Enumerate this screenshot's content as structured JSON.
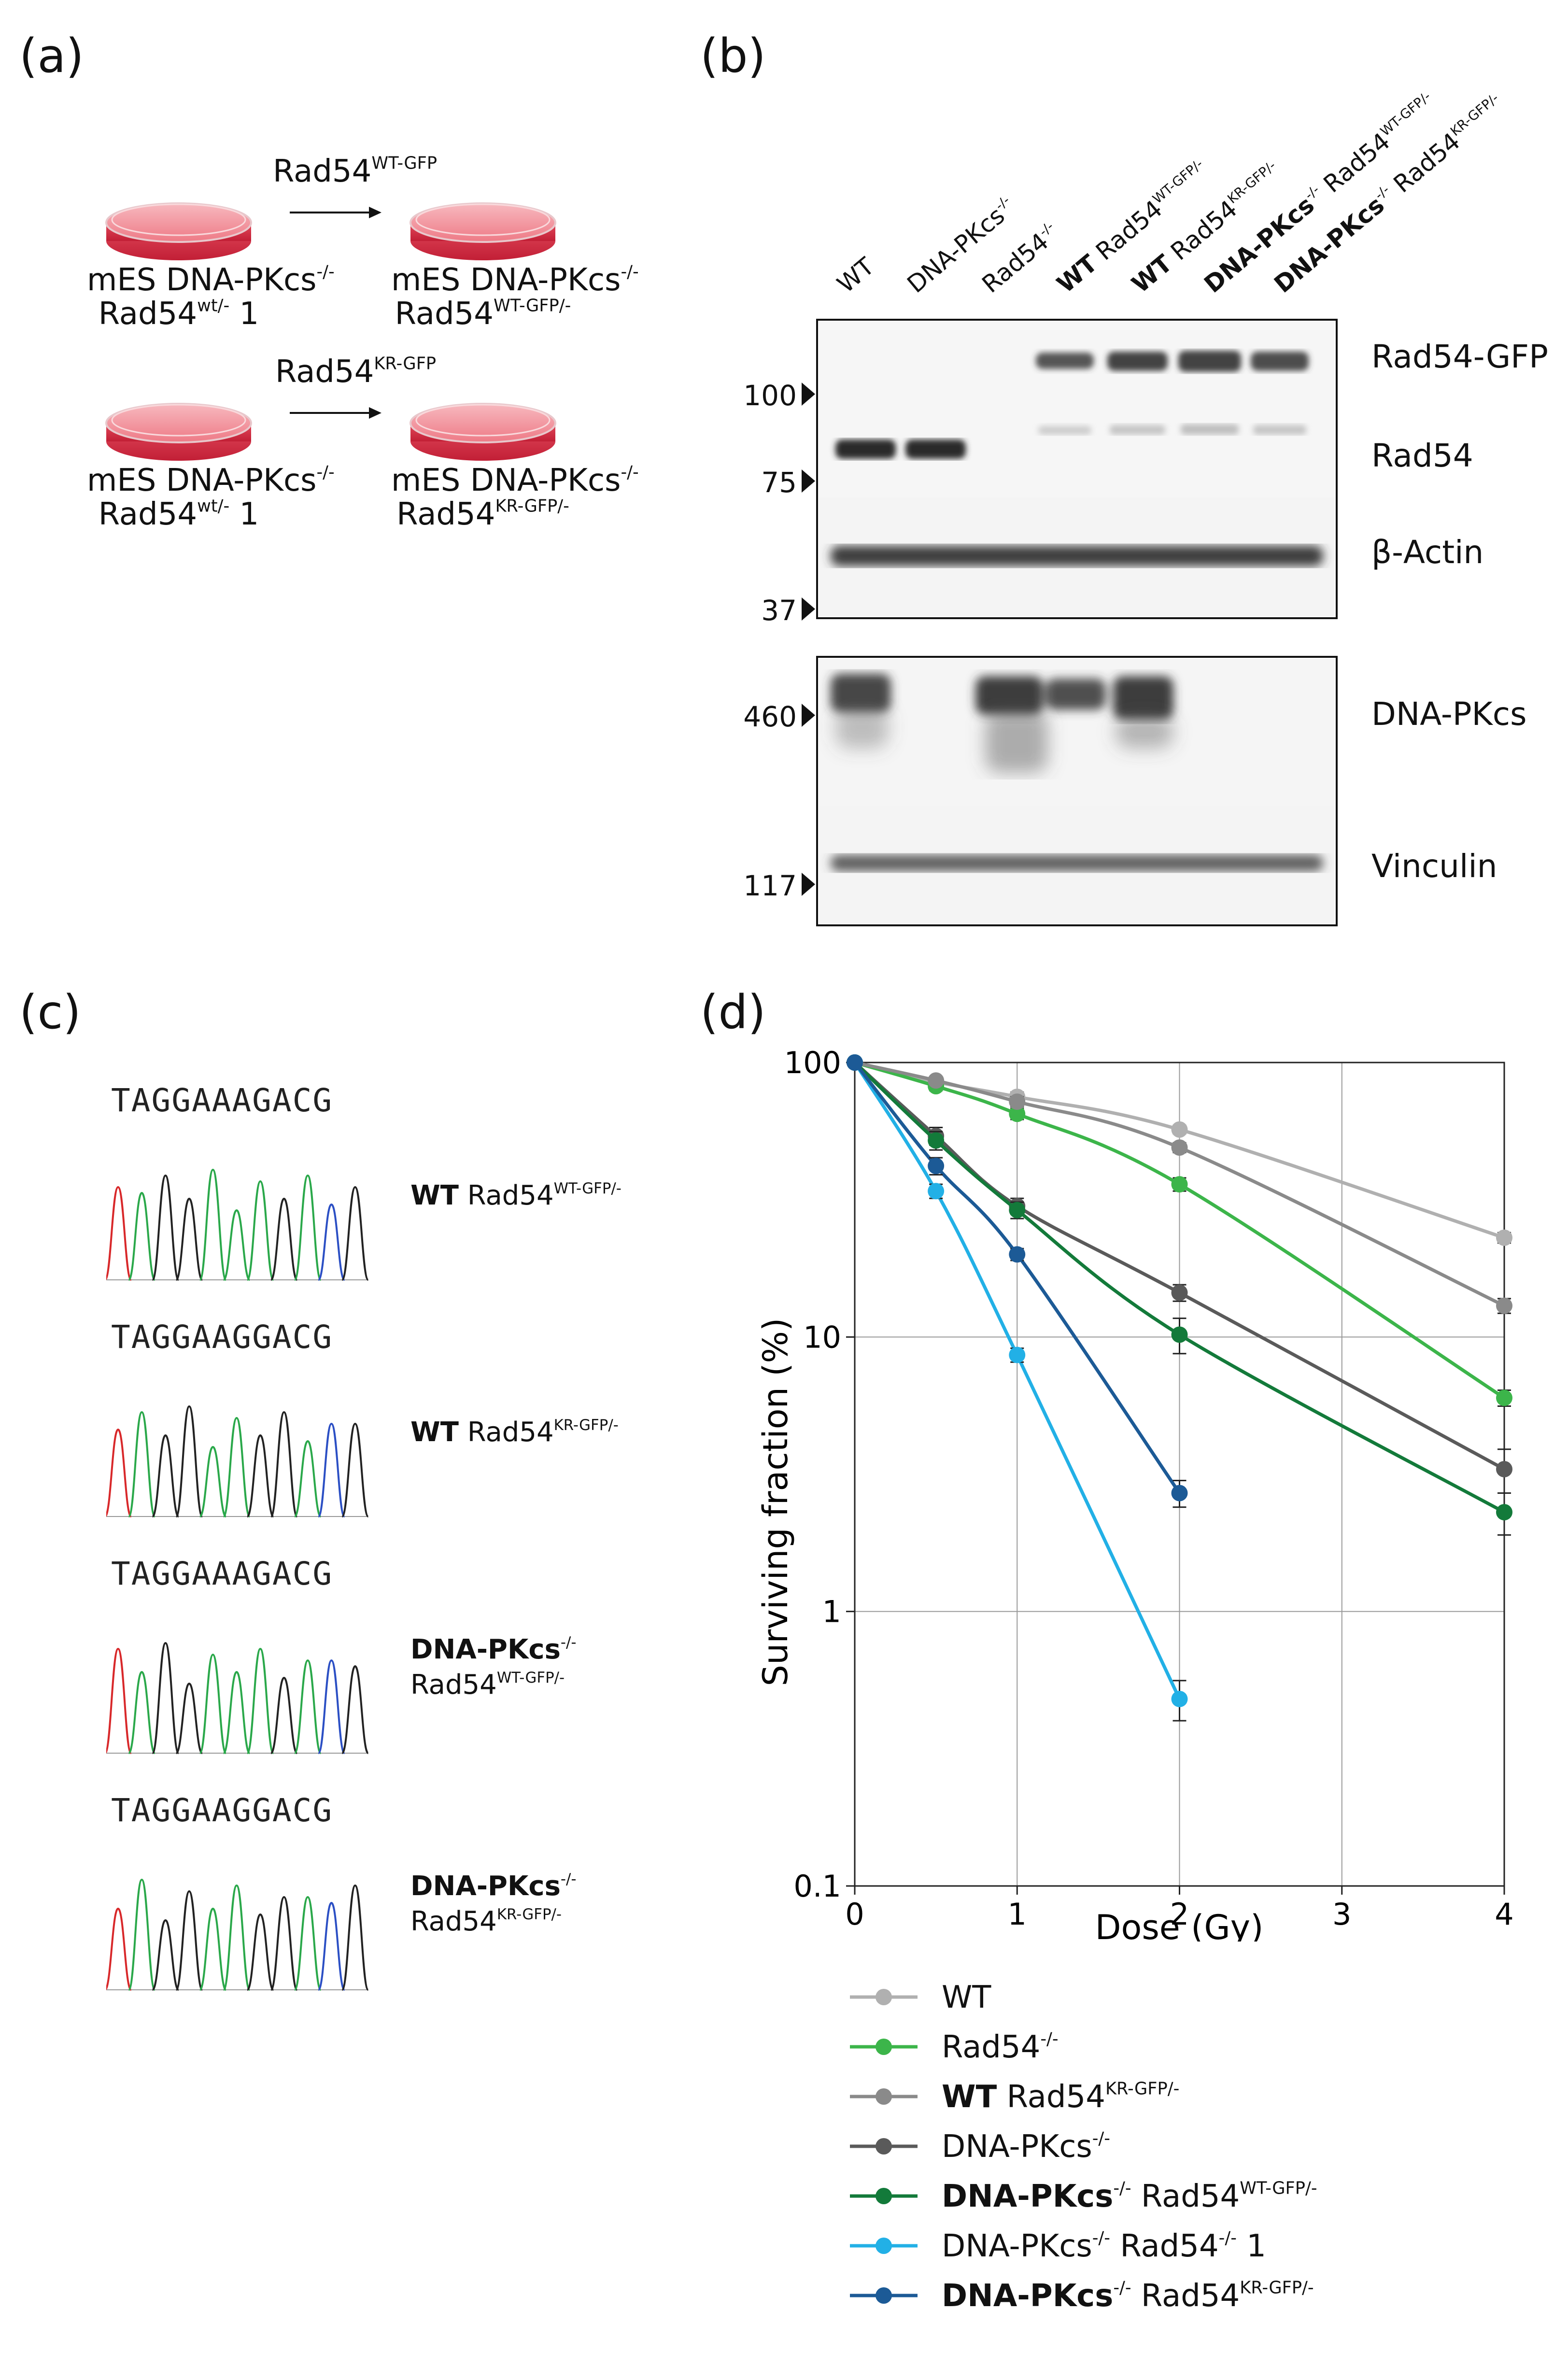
{
  "panels": {
    "a": "(a)",
    "b": "(b)",
    "c": "(c)",
    "d": "(d)"
  },
  "panel_a": {
    "row1": {
      "arrow_base": "Rad54",
      "arrow_sup": "WT-GFP",
      "left_line1": "mES DNA-PKcs",
      "left_line1_sup": "-/-",
      "left_line2": "Rad54",
      "left_line2_sup": "wt/-",
      "left_line2_suffix": " 1",
      "right_line1": "mES DNA-PKcs",
      "right_line1_sup": "-/-",
      "right_line2": "Rad54",
      "right_line2_sup": "WT-GFP/-"
    },
    "row2": {
      "arrow_base": "Rad54",
      "arrow_sup": "KR-GFP",
      "left_line1": "mES DNA-PKcs",
      "left_line1_sup": "-/-",
      "left_line2": "Rad54",
      "left_line2_sup": "wt/-",
      "left_line2_suffix": " 1",
      "right_line1": "mES DNA-PKcs",
      "right_line1_sup": "-/-",
      "right_line2": "Rad54",
      "right_line2_sup": "KR-GFP/-"
    }
  },
  "panel_b": {
    "lanes": [
      {
        "bold": "",
        "base": "WT",
        "sup": ""
      },
      {
        "bold": "",
        "base": "DNA-PKcs",
        "sup": "-/-"
      },
      {
        "bold": "",
        "base": "Rad54",
        "sup": "-/-"
      },
      {
        "bold": "WT",
        "base": " Rad54",
        "sup": "WT-GFP/-"
      },
      {
        "bold": "WT",
        "base": " Rad54",
        "sup": "KR-GFP/-"
      },
      {
        "bold": "DNA-PKcs",
        "bold_sup": "-/-",
        "base": " Rad54",
        "sup": "WT-GFP/-"
      },
      {
        "bold": "DNA-PKcs",
        "bold_sup": "-/-",
        "base": " Rad54",
        "sup": "KR-GFP/-"
      }
    ],
    "mw_top": [
      "100",
      "75",
      "37"
    ],
    "mw_bottom": [
      "460",
      "117"
    ],
    "bands_top": [
      "Rad54-GFP",
      "Rad54",
      "β-Actin"
    ],
    "bands_bottom": [
      "DNA-PKcs",
      "Vinculin"
    ]
  },
  "panel_c": {
    "sequences": [
      {
        "seq": "TAGGAAAGACG",
        "bold": "WT",
        "rest": " Rad54",
        "sup": "WT-GFP/-",
        "line2": "",
        "line2_sup": ""
      },
      {
        "seq": "TAGGAAGGACG",
        "bold": "WT",
        "rest": " Rad54",
        "sup": "KR-GFP/-",
        "line2": "",
        "line2_sup": ""
      },
      {
        "seq": "TAGGAAAGACG",
        "bold": "DNA-PKcs",
        "bold_sup": "-/-",
        "line2": "Rad54",
        "line2_sup": "WT-GFP/-"
      },
      {
        "seq": "TAGGAAGGACG",
        "bold": "DNA-PKcs",
        "bold_sup": "-/-",
        "line2": "Rad54",
        "line2_sup": "KR-GFP/-"
      }
    ],
    "base_colors": {
      "A": "#2aa84a",
      "G": "#222222",
      "C": "#2b4fc4",
      "T": "#d8282a"
    }
  },
  "chart_data": {
    "type": "line",
    "title": "",
    "xlabel": "Dose (Gy)",
    "ylabel": "Surviving fraction (%)",
    "xlim": [
      0,
      4
    ],
    "ylim": [
      0.1,
      100
    ],
    "yscale": "log",
    "xticks": [
      0,
      1,
      2,
      3,
      4
    ],
    "yticks": [
      0.1,
      1,
      10,
      100
    ],
    "ytick_labels": [
      "0.1",
      "1",
      "10",
      "100"
    ],
    "grid": true,
    "series": [
      {
        "name": "WT",
        "color": "#b0b0b0",
        "x": [
          0,
          0.5,
          1,
          2,
          4
        ],
        "values": [
          100,
          85,
          75,
          57,
          23
        ],
        "err": [
          0,
          3,
          3,
          2,
          1
        ],
        "fit_end": 4
      },
      {
        "name": "Rad54-/-",
        "color": "#3cb54a",
        "x": [
          0,
          0.5,
          1,
          2,
          4
        ],
        "values": [
          100,
          82,
          65,
          36,
          6
        ],
        "err": [
          0,
          3,
          3,
          2,
          0.4
        ],
        "fit_end": 4
      },
      {
        "name": "WT Rad54KR-GFP/-",
        "color": "#8a8a8a",
        "x": [
          0,
          0.5,
          1,
          2,
          4
        ],
        "values": [
          100,
          86,
          72,
          49,
          13
        ],
        "err": [
          0,
          2,
          3,
          2,
          0.8
        ],
        "fit_end": 4
      },
      {
        "name": "DNA-PKcs-/-",
        "color": "#5a5a5a",
        "x": [
          0,
          0.5,
          1,
          2,
          4
        ],
        "values": [
          100,
          54,
          30,
          14.5,
          3.3
        ],
        "err": [
          0,
          4,
          2,
          1,
          0.6
        ],
        "fit_end": 4
      },
      {
        "name": "DNA-PKcs-/- Rad54WT-GFP/-",
        "color": "#137a3a",
        "x": [
          0,
          0.5,
          1,
          2,
          4
        ],
        "values": [
          100,
          52,
          29,
          10.2,
          2.3
        ],
        "err": [
          0,
          4,
          2,
          1.5,
          0.4
        ],
        "fit_end": 4
      },
      {
        "name": "DNA-PKcs-/- Rad54-/- 1",
        "color": "#22b0e6",
        "x": [
          0,
          0.5,
          1,
          2
        ],
        "values": [
          100,
          34,
          8.6,
          0.48
        ],
        "err": [
          0,
          2,
          0.5,
          0.08
        ],
        "fit_end": 2
      },
      {
        "name": "DNA-PKcs-/- Rad54KR-GFP/-",
        "color": "#1c5a96",
        "x": [
          0,
          0.5,
          1,
          2
        ],
        "values": [
          100,
          42,
          20,
          2.7
        ],
        "err": [
          0,
          3,
          1,
          0.3
        ],
        "fit_end": 2
      }
    ]
  },
  "legend": [
    {
      "bold": "",
      "bold_sup": "",
      "text": "WT",
      "sup": "",
      "suffix": "",
      "color": "#b0b0b0"
    },
    {
      "bold": "",
      "bold_sup": "",
      "text": "Rad54",
      "sup": "-/-",
      "suffix": "",
      "color": "#3cb54a"
    },
    {
      "bold": "WT",
      "bold_sup": "",
      "text": " Rad54",
      "sup": "KR-GFP/-",
      "suffix": "",
      "color": "#8a8a8a"
    },
    {
      "bold": "",
      "bold_sup": "",
      "text": "DNA-PKcs",
      "sup": "-/-",
      "suffix": "",
      "color": "#5a5a5a"
    },
    {
      "bold": "DNA-PKcs",
      "bold_sup": "-/-",
      "text": " Rad54",
      "sup": "WT-GFP/-",
      "suffix": "",
      "color": "#137a3a"
    },
    {
      "bold": "",
      "bold_sup": "",
      "text": "DNA-PKcs",
      "sup": "-/-",
      "text2": " Rad54",
      "sup2": "-/-",
      "suffix": " 1",
      "color": "#22b0e6"
    },
    {
      "bold": "DNA-PKcs",
      "bold_sup": "-/-",
      "text": " Rad54",
      "sup": "KR-GFP/-",
      "suffix": "",
      "color": "#1c5a96"
    }
  ]
}
